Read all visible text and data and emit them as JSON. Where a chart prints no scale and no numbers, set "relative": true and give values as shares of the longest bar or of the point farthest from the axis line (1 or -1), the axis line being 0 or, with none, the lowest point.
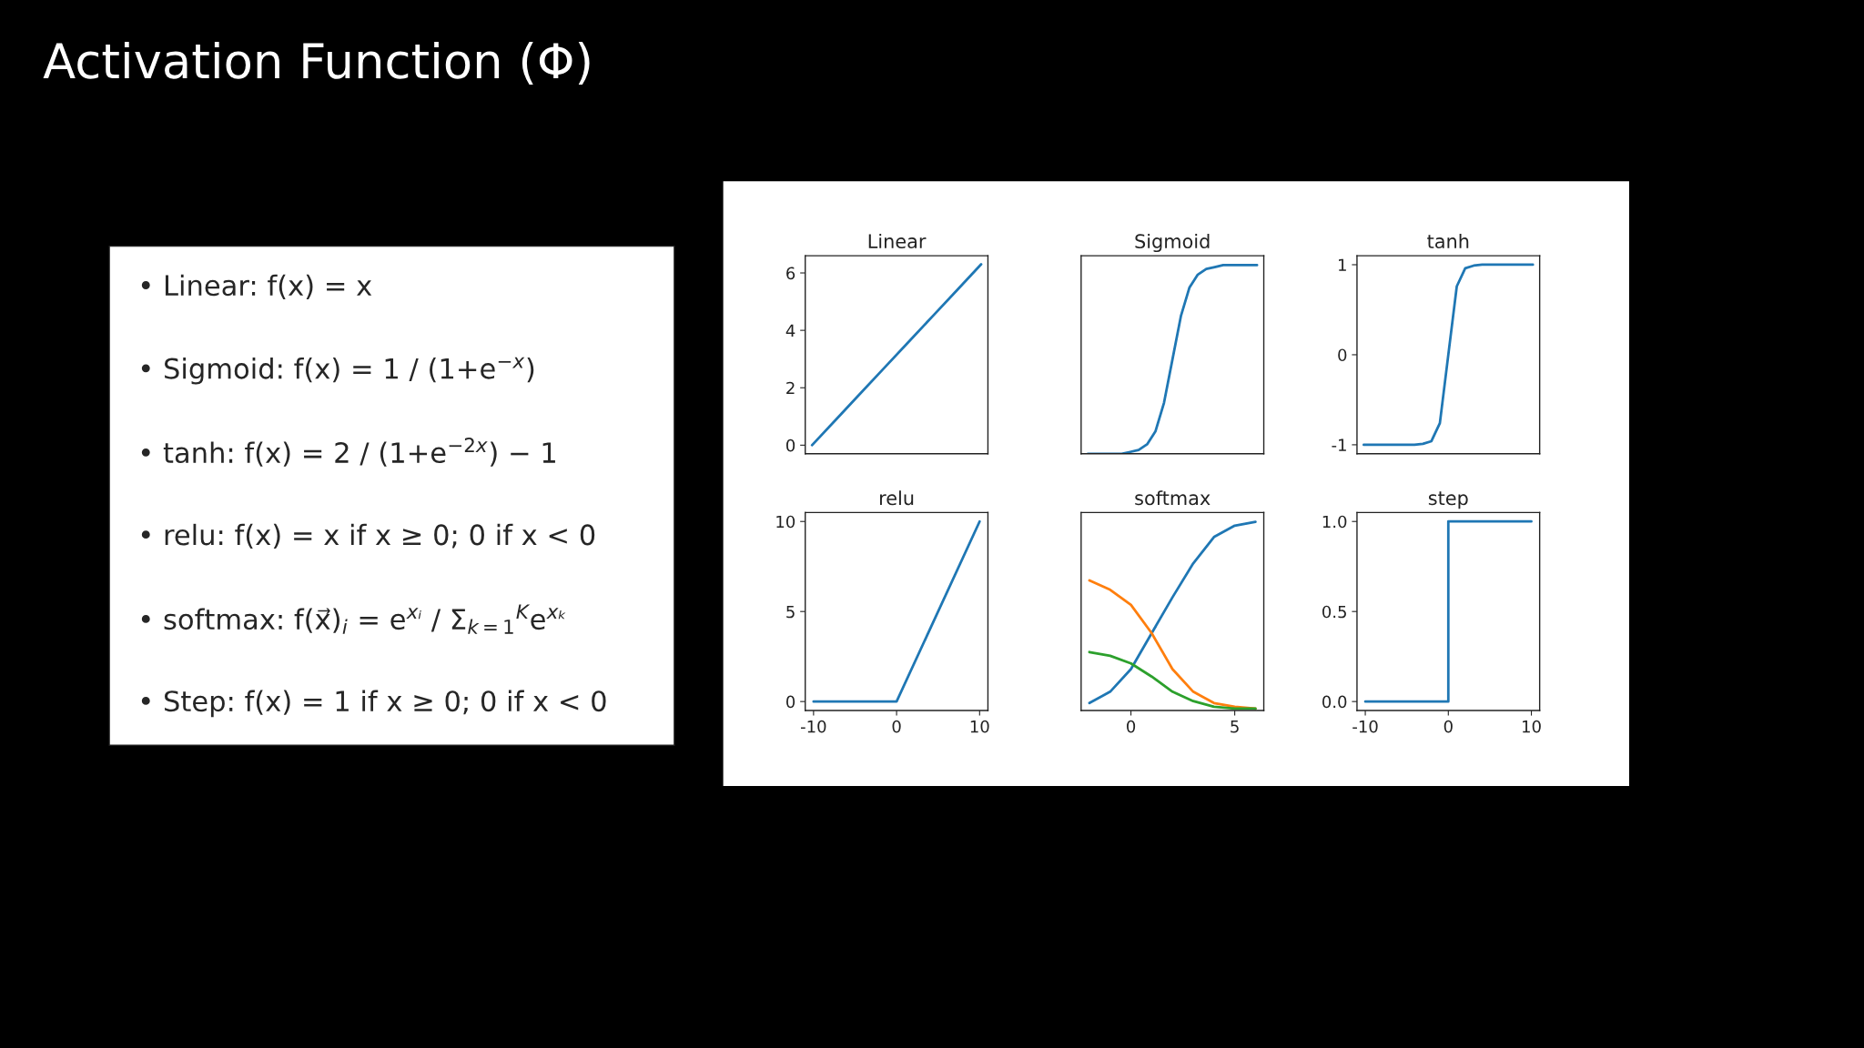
{
  "chart_data": [
    {
      "type": "other",
      "title": "Activation Function (Φ)",
      "annotations": [
        "• Linear: f(x) = x",
        "• Sigmoid: f(x) = 1 / (1+e$^{−x}$)",
        "• tanh: f(x) = 2 / (1+e$^{−2x}$) − 1",
        "• relu: f(x) = x if x ≥ 0; 0 if x < 0",
        "• softmax: f(x⃗)$_{i}$ = e$^{xᵢ}$ / Σ$_{k=1}$$^{K}$e$^{xₖ}$",
        "• Step: f(x) = 1 if x ≥ 0; 0 if x < 0"
      ]
    },
    {
      "type": "line",
      "title": "Linear",
      "categories": [
        null,
        null,
        null,
        null,
        null,
        null,
        null,
        null
      ],
      "series": [
        {
          "color": "#1f77b4",
          "values": [
            0,
            0.9,
            1.8,
            2.7,
            3.6,
            4.5,
            5.4,
            6.3
          ]
        }
      ],
      "ylim": [
        -0.3,
        6.6
      ],
      "yticks": [
        0,
        2,
        4,
        6
      ],
      "tick_labels": "y"
    },
    {
      "type": "line",
      "title": "Sigmoid",
      "categories": [
        null,
        null,
        null,
        null,
        null,
        null,
        null,
        null,
        null,
        null,
        null,
        null,
        null,
        null,
        null,
        null,
        null,
        null,
        null,
        null,
        null
      ],
      "series": [
        {
          "color": "#1f77b4",
          "values": [
            0,
            0,
            0,
            0,
            0,
            0.01,
            0.02,
            0.05,
            0.12,
            0.27,
            0.5,
            0.73,
            0.88,
            0.95,
            0.98,
            0.99,
            1,
            1,
            1,
            1,
            1
          ]
        }
      ],
      "relative": true,
      "tick_labels": false
    },
    {
      "type": "line",
      "title": "tanh",
      "categories": [
        null,
        null,
        null,
        null,
        null,
        null,
        null,
        null,
        null,
        null,
        null,
        null,
        null,
        null,
        null,
        null,
        null,
        null,
        null,
        null,
        null
      ],
      "series": [
        {
          "color": "#1f77b4",
          "values": [
            -1,
            -1,
            -1,
            -1,
            -1,
            -1,
            -1,
            -0.99,
            -0.96,
            -0.76,
            0,
            0.76,
            0.96,
            0.99,
            1,
            1,
            1,
            1,
            1,
            1,
            1
          ]
        }
      ],
      "ylim": [
        -1.1,
        1.1
      ],
      "yticks": [
        -1,
        0,
        1
      ],
      "tick_labels": "y"
    },
    {
      "type": "line",
      "title": "relu",
      "x": [
        -10,
        0,
        10
      ],
      "series": [
        {
          "color": "#1f77b4",
          "values": [
            0,
            0,
            10
          ]
        }
      ],
      "xlim": [
        -11,
        11
      ],
      "xticks": [
        -10,
        0,
        10
      ],
      "ylim": [
        -0.5,
        10.5
      ],
      "yticks": [
        0,
        5,
        10
      ]
    },
    {
      "type": "line",
      "title": "softmax",
      "x": [
        -2,
        -1,
        0,
        1,
        2,
        3,
        4,
        5,
        6
      ],
      "series": [
        {
          "color": "#1f77b4",
          "values": [
            0.04,
            0.1,
            0.22,
            0.41,
            0.6,
            0.78,
            0.92,
            0.98,
            1
          ]
        },
        {
          "color": "#ff7f0e",
          "values": [
            0.69,
            0.64,
            0.56,
            0.41,
            0.22,
            0.1,
            0.04,
            0.02,
            0.01
          ]
        },
        {
          "color": "#2ca02c",
          "values": [
            0.31,
            0.29,
            0.25,
            0.18,
            0.1,
            0.05,
            0.02,
            0.01,
            0.01
          ]
        }
      ],
      "xlim": [
        -2.4,
        6.4
      ],
      "xticks": [
        0,
        5
      ],
      "relative": true,
      "tick_labels": "x"
    },
    {
      "type": "line",
      "title": "step",
      "x": [
        -10,
        0,
        0,
        10
      ],
      "series": [
        {
          "color": "#1f77b4",
          "values": [
            0,
            0,
            1,
            1
          ]
        }
      ],
      "xlim": [
        -11,
        11
      ],
      "xticks": [
        -10,
        0,
        10
      ],
      "ylim": [
        -0.05,
        1.05
      ],
      "yticks": [
        {
          "value": 0,
          "label": "0.0"
        },
        {
          "value": 0.5,
          "label": "0.5"
        },
        {
          "value": 1,
          "label": "1.0"
        }
      ]
    }
  ]
}
